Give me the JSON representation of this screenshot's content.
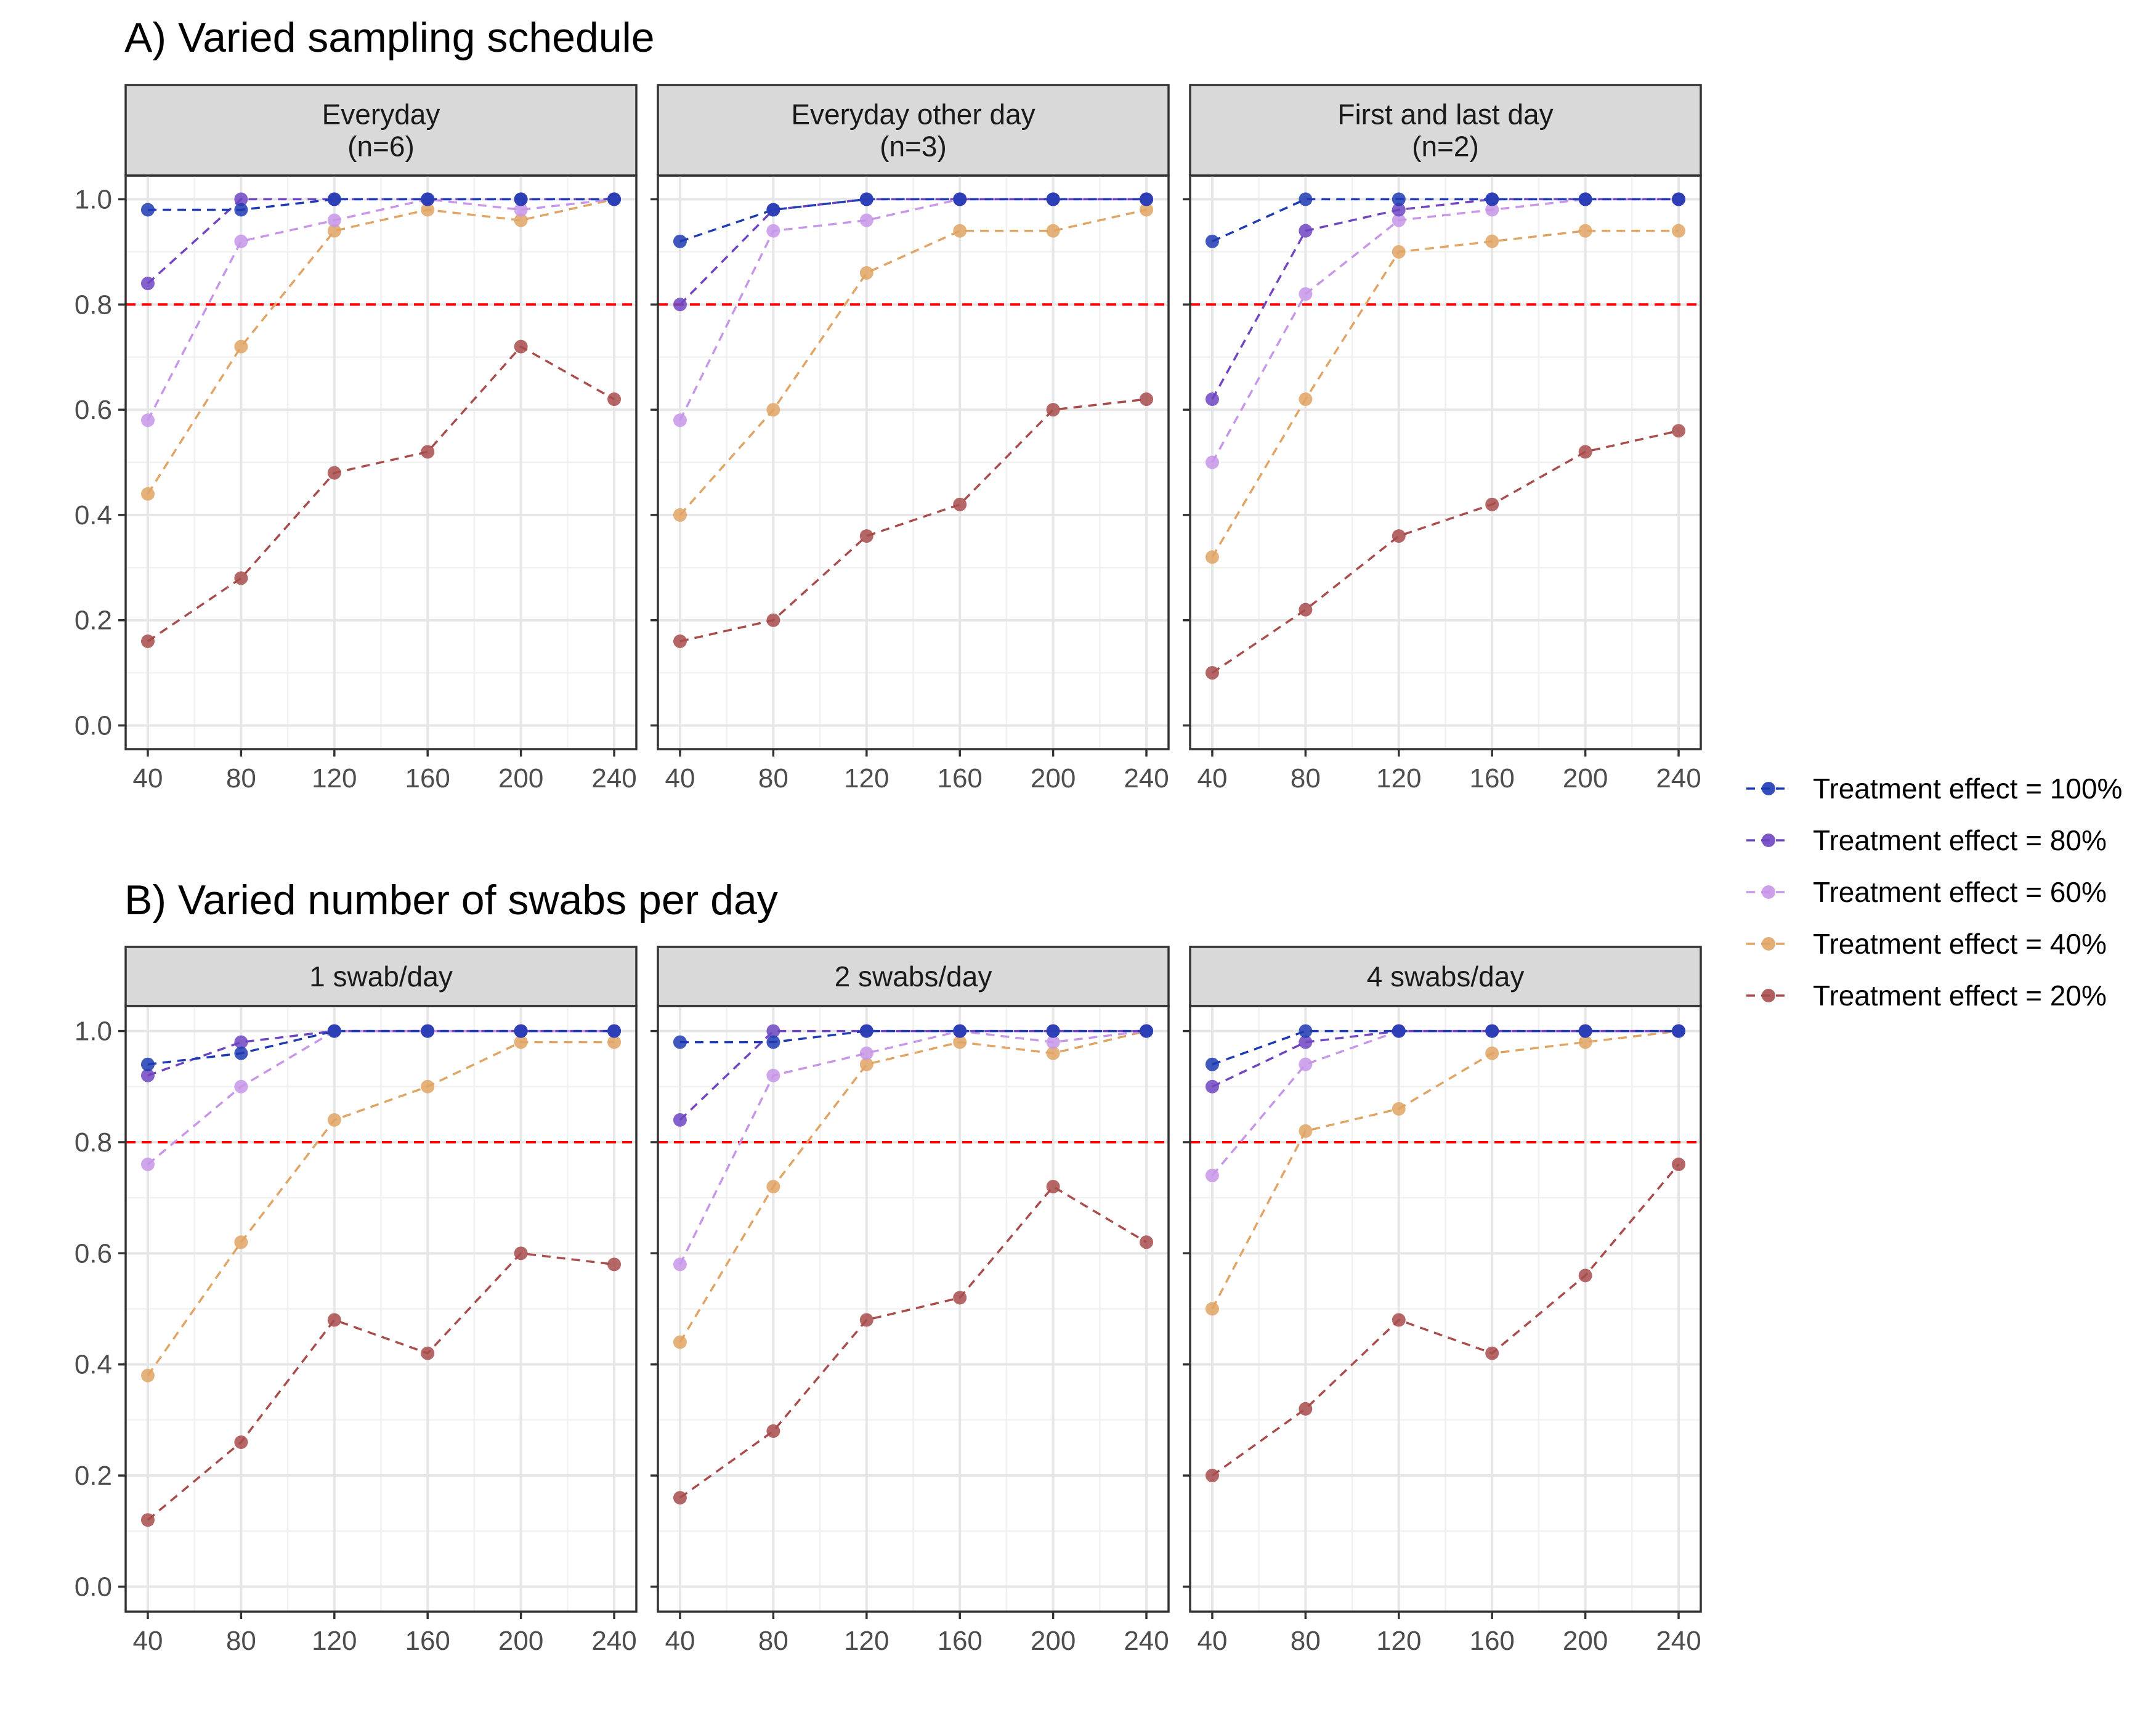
{
  "sections": [
    {
      "title": "A) Varied sampling schedule"
    },
    {
      "title": "B) Varied number of swabs per day"
    }
  ],
  "colors": {
    "te100": "#1f3bb3",
    "te80": "#6f45c2",
    "te60": "#c796e8",
    "te40": "#e0a465",
    "te20": "#a84c4c",
    "reference_line": "#ff0000",
    "strip_background": "#d9d9d9"
  },
  "chart_data": [
    {
      "type": "line",
      "facet": "Everyday\n(n=6)",
      "strip": [
        "Everyday",
        "(n=6)"
      ],
      "x": [
        40,
        80,
        120,
        160,
        200,
        240
      ],
      "xticks": [
        40,
        80,
        120,
        160,
        200,
        240
      ],
      "ylim": [
        0,
        1
      ],
      "yticks": [
        0.0,
        0.2,
        0.4,
        0.6,
        0.8,
        1.0
      ],
      "yticklabels": [
        "0.0",
        "0.2",
        "0.4",
        "0.6",
        "0.8",
        "1.0"
      ],
      "reference_line": 0.8,
      "series": [
        {
          "name": "Treatment effect = 100%",
          "color": "#1f3bb3",
          "values": [
            0.98,
            0.98,
            1.0,
            1.0,
            1.0,
            1.0
          ]
        },
        {
          "name": "Treatment effect = 80%",
          "color": "#6f45c2",
          "values": [
            0.84,
            1.0,
            1.0,
            1.0,
            1.0,
            1.0
          ]
        },
        {
          "name": "Treatment effect = 60%",
          "color": "#c796e8",
          "values": [
            0.58,
            0.92,
            0.96,
            1.0,
            0.98,
            1.0
          ]
        },
        {
          "name": "Treatment effect = 40%",
          "color": "#e0a465",
          "values": [
            0.44,
            0.72,
            0.94,
            0.98,
            0.96,
            1.0
          ]
        },
        {
          "name": "Treatment effect = 20%",
          "color": "#a84c4c",
          "values": [
            0.16,
            0.28,
            0.48,
            0.52,
            0.72,
            0.62
          ]
        }
      ]
    },
    {
      "type": "line",
      "facet": "Everyday other day\n(n=3)",
      "strip": [
        "Everyday other day",
        "(n=3)"
      ],
      "x": [
        40,
        80,
        120,
        160,
        200,
        240
      ],
      "xticks": [
        40,
        80,
        120,
        160,
        200,
        240
      ],
      "ylim": [
        0,
        1
      ],
      "reference_line": 0.8,
      "series": [
        {
          "name": "Treatment effect = 100%",
          "color": "#1f3bb3",
          "values": [
            0.92,
            0.98,
            1.0,
            1.0,
            1.0,
            1.0
          ]
        },
        {
          "name": "Treatment effect = 80%",
          "color": "#6f45c2",
          "values": [
            0.8,
            0.98,
            1.0,
            1.0,
            1.0,
            1.0
          ]
        },
        {
          "name": "Treatment effect = 60%",
          "color": "#c796e8",
          "values": [
            0.58,
            0.94,
            0.96,
            1.0,
            1.0,
            1.0
          ]
        },
        {
          "name": "Treatment effect = 40%",
          "color": "#e0a465",
          "values": [
            0.4,
            0.6,
            0.86,
            0.94,
            0.94,
            0.98
          ]
        },
        {
          "name": "Treatment effect = 20%",
          "color": "#a84c4c",
          "values": [
            0.16,
            0.2,
            0.36,
            0.42,
            0.6,
            0.62
          ]
        }
      ]
    },
    {
      "type": "line",
      "facet": "First and last day\n(n=2)",
      "strip": [
        "First and last day",
        "(n=2)"
      ],
      "x": [
        40,
        80,
        120,
        160,
        200,
        240
      ],
      "xticks": [
        40,
        80,
        120,
        160,
        200,
        240
      ],
      "ylim": [
        0,
        1
      ],
      "reference_line": 0.8,
      "series": [
        {
          "name": "Treatment effect = 100%",
          "color": "#1f3bb3",
          "values": [
            0.92,
            1.0,
            1.0,
            1.0,
            1.0,
            1.0
          ]
        },
        {
          "name": "Treatment effect = 80%",
          "color": "#6f45c2",
          "values": [
            0.62,
            0.94,
            0.98,
            1.0,
            1.0,
            1.0
          ]
        },
        {
          "name": "Treatment effect = 60%",
          "color": "#c796e8",
          "values": [
            0.5,
            0.82,
            0.96,
            0.98,
            1.0,
            1.0
          ]
        },
        {
          "name": "Treatment effect = 40%",
          "color": "#e0a465",
          "values": [
            0.32,
            0.62,
            0.9,
            0.92,
            0.94,
            0.94
          ]
        },
        {
          "name": "Treatment effect = 20%",
          "color": "#a84c4c",
          "values": [
            0.1,
            0.22,
            0.36,
            0.42,
            0.52,
            0.56
          ]
        }
      ]
    },
    {
      "type": "line",
      "facet": "1 swab/day",
      "strip": [
        "1 swab/day"
      ],
      "x": [
        40,
        80,
        120,
        160,
        200,
        240
      ],
      "xticks": [
        40,
        80,
        120,
        160,
        200,
        240
      ],
      "ylim": [
        0,
        1
      ],
      "yticks": [
        0.0,
        0.2,
        0.4,
        0.6,
        0.8,
        1.0
      ],
      "yticklabels": [
        "0.0",
        "0.2",
        "0.4",
        "0.6",
        "0.8",
        "1.0"
      ],
      "reference_line": 0.8,
      "series": [
        {
          "name": "Treatment effect = 100%",
          "color": "#1f3bb3",
          "values": [
            0.94,
            0.96,
            1.0,
            1.0,
            1.0,
            1.0
          ]
        },
        {
          "name": "Treatment effect = 80%",
          "color": "#6f45c2",
          "values": [
            0.92,
            0.98,
            1.0,
            1.0,
            1.0,
            1.0
          ]
        },
        {
          "name": "Treatment effect = 60%",
          "color": "#c796e8",
          "values": [
            0.76,
            0.9,
            1.0,
            1.0,
            1.0,
            1.0
          ]
        },
        {
          "name": "Treatment effect = 40%",
          "color": "#e0a465",
          "values": [
            0.38,
            0.62,
            0.84,
            0.9,
            0.98,
            0.98
          ]
        },
        {
          "name": "Treatment effect = 20%",
          "color": "#a84c4c",
          "values": [
            0.12,
            0.26,
            0.48,
            0.42,
            0.6,
            0.58
          ]
        }
      ]
    },
    {
      "type": "line",
      "facet": "2 swabs/day",
      "strip": [
        "2 swabs/day"
      ],
      "x": [
        40,
        80,
        120,
        160,
        200,
        240
      ],
      "xticks": [
        40,
        80,
        120,
        160,
        200,
        240
      ],
      "ylim": [
        0,
        1
      ],
      "reference_line": 0.8,
      "series": [
        {
          "name": "Treatment effect = 100%",
          "color": "#1f3bb3",
          "values": [
            0.98,
            0.98,
            1.0,
            1.0,
            1.0,
            1.0
          ]
        },
        {
          "name": "Treatment effect = 80%",
          "color": "#6f45c2",
          "values": [
            0.84,
            1.0,
            1.0,
            1.0,
            1.0,
            1.0
          ]
        },
        {
          "name": "Treatment effect = 60%",
          "color": "#c796e8",
          "values": [
            0.58,
            0.92,
            0.96,
            1.0,
            0.98,
            1.0
          ]
        },
        {
          "name": "Treatment effect = 40%",
          "color": "#e0a465",
          "values": [
            0.44,
            0.72,
            0.94,
            0.98,
            0.96,
            1.0
          ]
        },
        {
          "name": "Treatment effect = 20%",
          "color": "#a84c4c",
          "values": [
            0.16,
            0.28,
            0.48,
            0.52,
            0.72,
            0.62
          ]
        }
      ]
    },
    {
      "type": "line",
      "facet": "4 swabs/day",
      "strip": [
        "4 swabs/day"
      ],
      "x": [
        40,
        80,
        120,
        160,
        200,
        240
      ],
      "xticks": [
        40,
        80,
        120,
        160,
        200,
        240
      ],
      "ylim": [
        0,
        1
      ],
      "reference_line": 0.8,
      "series": [
        {
          "name": "Treatment effect = 100%",
          "color": "#1f3bb3",
          "values": [
            0.94,
            1.0,
            1.0,
            1.0,
            1.0,
            1.0
          ]
        },
        {
          "name": "Treatment effect = 80%",
          "color": "#6f45c2",
          "values": [
            0.9,
            0.98,
            1.0,
            1.0,
            1.0,
            1.0
          ]
        },
        {
          "name": "Treatment effect = 60%",
          "color": "#c796e8",
          "values": [
            0.74,
            0.94,
            1.0,
            1.0,
            1.0,
            1.0
          ]
        },
        {
          "name": "Treatment effect = 40%",
          "color": "#e0a465",
          "values": [
            0.5,
            0.82,
            0.86,
            0.96,
            0.98,
            1.0
          ]
        },
        {
          "name": "Treatment effect = 20%",
          "color": "#a84c4c",
          "values": [
            0.2,
            0.32,
            0.48,
            0.42,
            0.56,
            0.76
          ]
        }
      ]
    }
  ],
  "legend": {
    "placement": "right",
    "entries": [
      {
        "label": "Treatment effect = 100%",
        "color": "#1f3bb3"
      },
      {
        "label": "Treatment effect = 80%",
        "color": "#6f45c2"
      },
      {
        "label": "Treatment effect = 60%",
        "color": "#c796e8"
      },
      {
        "label": "Treatment effect = 40%",
        "color": "#e0a465"
      },
      {
        "label": "Treatment effect = 20%",
        "color": "#a84c4c"
      }
    ]
  }
}
